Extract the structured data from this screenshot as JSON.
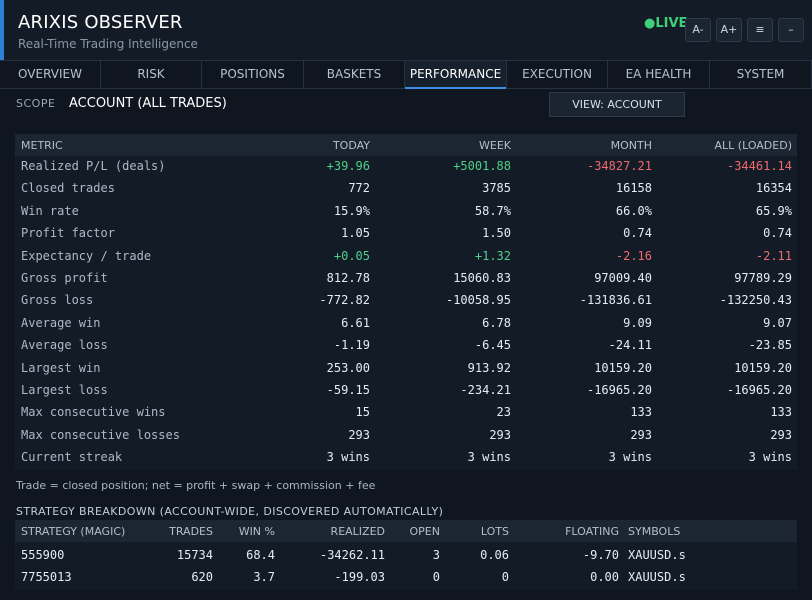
{
  "header": {
    "title": "ARIXIS OBSERVER",
    "subtitle": "Real-Time Trading Intelligence",
    "live_label": "●LIVE",
    "buttons": [
      "A-",
      "A+",
      "≡",
      "–"
    ]
  },
  "tabs": [
    {
      "label": "OVERVIEW",
      "active": false
    },
    {
      "label": "RISK",
      "active": false
    },
    {
      "label": "POSITIONS",
      "active": false
    },
    {
      "label": "BASKETS",
      "active": false
    },
    {
      "label": "PERFORMANCE",
      "active": true
    },
    {
      "label": "EXECUTION",
      "active": false
    },
    {
      "label": "EA HEALTH",
      "active": false
    },
    {
      "label": "SYSTEM",
      "active": false
    }
  ],
  "scope": {
    "label": "SCOPE",
    "value": "ACCOUNT (ALL TRADES)",
    "view_button": "VIEW: ACCOUNT"
  },
  "metrics": {
    "headers": [
      "METRIC",
      "TODAY",
      "WEEK",
      "MONTH",
      "ALL (LOADED)"
    ],
    "rows": [
      {
        "label": "Realized P/L (deals)",
        "values": [
          "+39.96",
          "+5001.88",
          "-34827.21",
          "-34461.14"
        ],
        "colors": [
          "pos",
          "pos",
          "neg",
          "neg"
        ]
      },
      {
        "label": "Closed trades",
        "values": [
          "772",
          "3785",
          "16158",
          "16354"
        ],
        "colors": [
          "",
          "",
          "",
          ""
        ]
      },
      {
        "label": "Win rate",
        "values": [
          "15.9%",
          "58.7%",
          "66.0%",
          "65.9%"
        ],
        "colors": [
          "",
          "",
          "",
          ""
        ]
      },
      {
        "label": "Profit factor",
        "values": [
          "1.05",
          "1.50",
          "0.74",
          "0.74"
        ],
        "colors": [
          "",
          "",
          "",
          ""
        ]
      },
      {
        "label": "Expectancy / trade",
        "values": [
          "+0.05",
          "+1.32",
          "-2.16",
          "-2.11"
        ],
        "colors": [
          "pos",
          "pos",
          "neg",
          "neg"
        ]
      },
      {
        "label": "Gross profit",
        "values": [
          "812.78",
          "15060.83",
          "97009.40",
          "97789.29"
        ],
        "colors": [
          "",
          "",
          "",
          ""
        ]
      },
      {
        "label": "Gross loss",
        "values": [
          "-772.82",
          "-10058.95",
          "-131836.61",
          "-132250.43"
        ],
        "colors": [
          "",
          "",
          "",
          ""
        ]
      },
      {
        "label": "Average win",
        "values": [
          "6.61",
          "6.78",
          "9.09",
          "9.07"
        ],
        "colors": [
          "",
          "",
          "",
          ""
        ]
      },
      {
        "label": "Average loss",
        "values": [
          "-1.19",
          "-6.45",
          "-24.11",
          "-23.85"
        ],
        "colors": [
          "",
          "",
          "",
          ""
        ]
      },
      {
        "label": "Largest win",
        "values": [
          "253.00",
          "913.92",
          "10159.20",
          "10159.20"
        ],
        "colors": [
          "",
          "",
          "",
          ""
        ]
      },
      {
        "label": "Largest loss",
        "values": [
          "-59.15",
          "-234.21",
          "-16965.20",
          "-16965.20"
        ],
        "colors": [
          "",
          "",
          "",
          ""
        ]
      },
      {
        "label": "Max consecutive wins",
        "values": [
          "15",
          "23",
          "133",
          "133"
        ],
        "colors": [
          "",
          "",
          "",
          ""
        ]
      },
      {
        "label": "Max consecutive losses",
        "values": [
          "293",
          "293",
          "293",
          "293"
        ],
        "colors": [
          "",
          "",
          "",
          ""
        ]
      },
      {
        "label": "Current streak",
        "values": [
          "3 wins",
          "3 wins",
          "3 wins",
          "3 wins"
        ],
        "colors": [
          "",
          "",
          "",
          ""
        ]
      }
    ]
  },
  "note": "Trade = closed position; net = profit + swap + commission + fee",
  "strategy": {
    "title": "STRATEGY BREAKDOWN (ACCOUNT-WIDE, DISCOVERED AUTOMATICALLY)",
    "headers": [
      "STRATEGY (MAGIC)",
      "TRADES",
      "WIN %",
      "REALIZED",
      "OPEN",
      "LOTS",
      "FLOATING",
      "SYMBOLS"
    ],
    "rows": [
      {
        "values": [
          "555900",
          "15734",
          "68.4",
          "-34262.11",
          "3",
          "0.06",
          "-9.70",
          "XAUUSD.s"
        ],
        "colors": [
          "",
          "",
          "",
          "neg",
          "",
          "",
          "neg",
          ""
        ]
      },
      {
        "values": [
          "7755013",
          "620",
          "3.7",
          "-199.03",
          "0",
          "0",
          "0.00",
          "XAUUSD.s"
        ],
        "colors": [
          "",
          "",
          "",
          "neg",
          "",
          "",
          "",
          ""
        ]
      }
    ]
  },
  "colors": {
    "positive": "#4fd08a",
    "negative": "#ef6a6a",
    "accent": "#3a8ee6",
    "live": "#3ecf7a"
  }
}
